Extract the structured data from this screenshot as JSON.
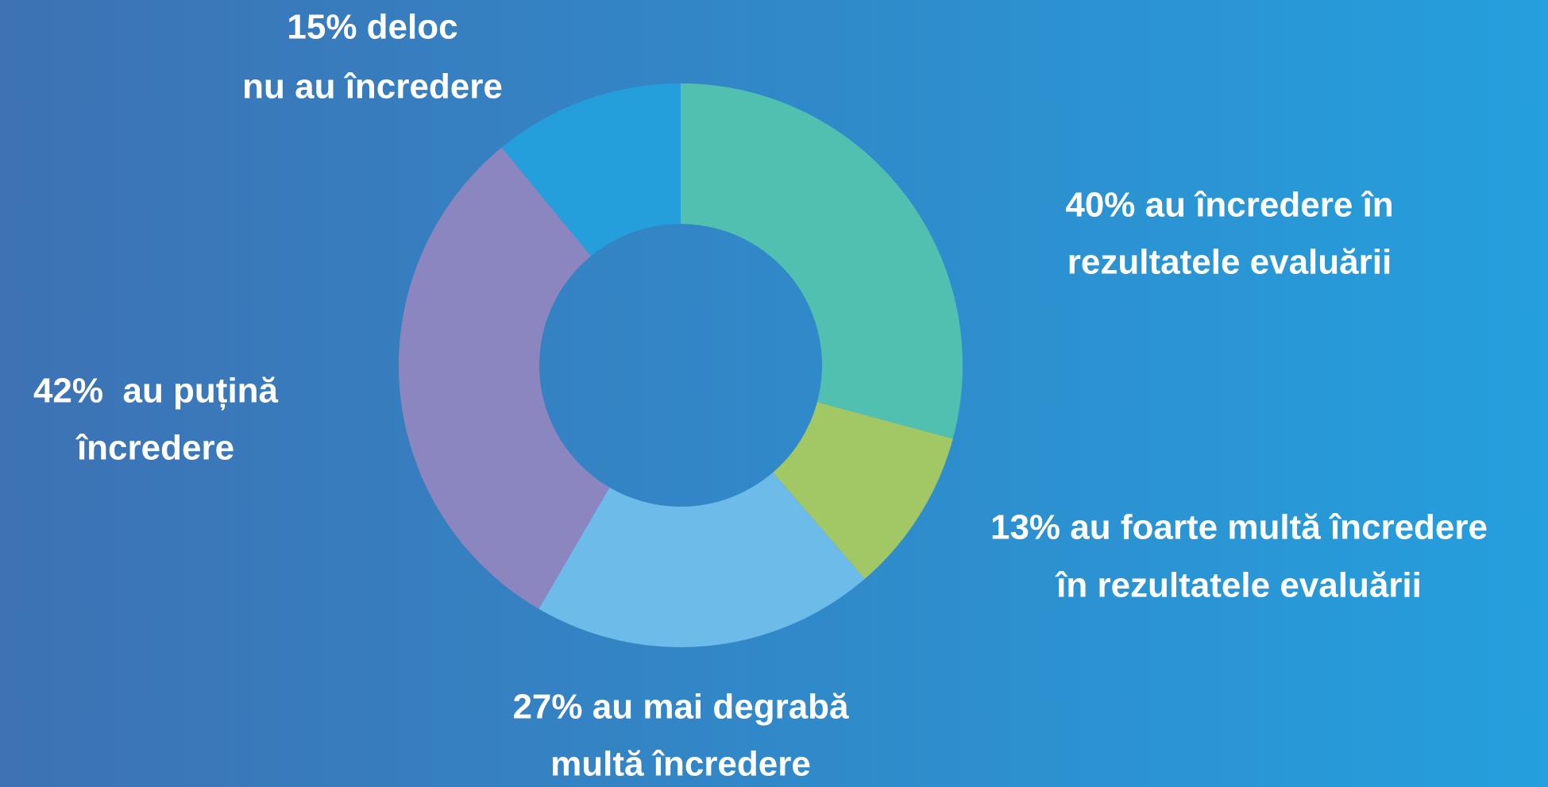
{
  "chart_data": {
    "type": "donut",
    "values": [
      40,
      13,
      27,
      42,
      15
    ],
    "value_labels": [
      [
        "40% au încredere în",
        "rezultatele evaluării"
      ],
      [
        "13% au foarte multă încredere",
        "în rezultatele evaluării"
      ],
      [
        "27% au mai degrabă",
        "multă încredere"
      ],
      [
        "42%  au puțină",
        "încredere"
      ],
      [
        "15% deloc",
        "nu au încredere"
      ]
    ],
    "colors": [
      "#52c0b0",
      "#a2c865",
      "#6cbbe8",
      "#8b86c0",
      "#259fdb"
    ]
  }
}
